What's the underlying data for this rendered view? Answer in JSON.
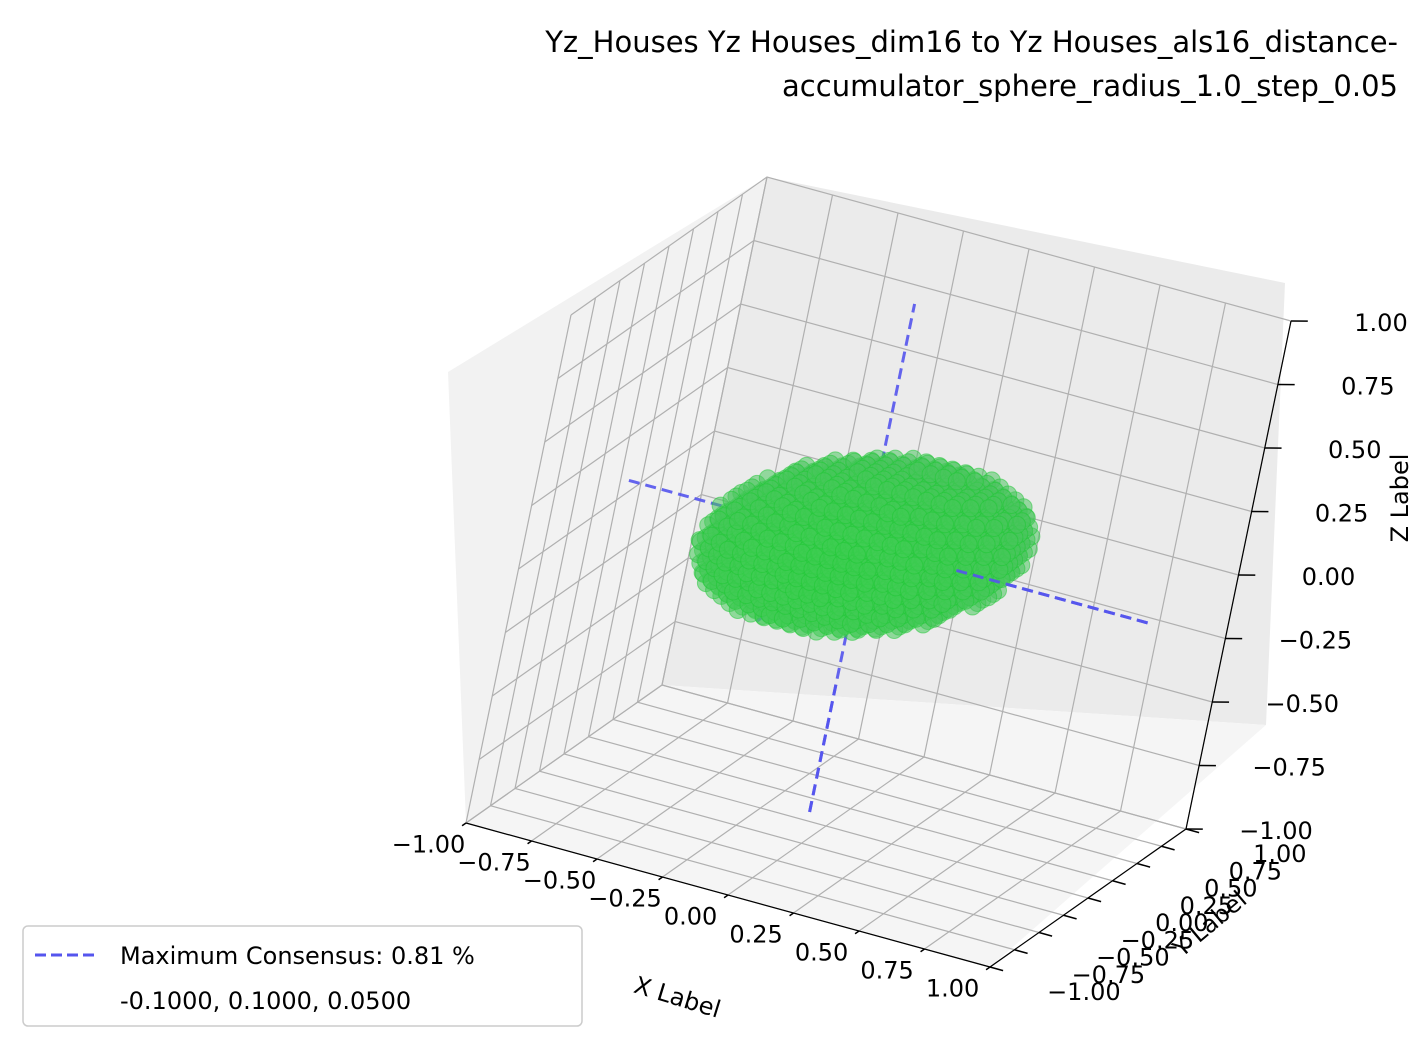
{
  "chart_data": {
    "type": "scatter",
    "title": "Yz_Houses Yz Houses_dim16 to Yz Houses_als16_distance-\naccumulator_sphere_radius_1.0_step_0.05",
    "title_lines": [
      "Yz_Houses Yz Houses_dim16 to Yz Houses_als16_distance-",
      "accumulator_sphere_radius_1.0_step_0.05"
    ],
    "xlabel": "X Label",
    "ylabel": "Y Label",
    "zlabel": "Z Label",
    "xlim": [
      -1.0,
      1.0
    ],
    "ylim": [
      -1.0,
      1.0
    ],
    "zlim": [
      -1.0,
      1.0
    ],
    "x_ticks": [
      "−1.00",
      "−0.75",
      "−0.50",
      "−0.25",
      "0.00",
      "0.25",
      "0.50",
      "0.75",
      "1.00"
    ],
    "y_ticks": [
      "−1.00",
      "−0.75",
      "−0.50",
      "−0.25",
      "0.00",
      "0.25",
      "0.50",
      "0.75",
      "1.00"
    ],
    "z_ticks": [
      "−1.00",
      "−0.75",
      "−0.50",
      "−0.25",
      "0.00",
      "0.25",
      "0.50",
      "0.75",
      "1.00"
    ],
    "grid": true,
    "point_color": "#22dd33",
    "consensus_line_color": "#5555ee",
    "point_cloud_description_values": {
      "center": [
        -0.1,
        0.1,
        0.05
      ],
      "extent_x": [
        -0.7,
        0.55
      ],
      "extent_y": [
        -0.55,
        0.55
      ],
      "extent_z": [
        -0.45,
        0.35
      ]
    },
    "consensus_point": [
      -0.1,
      0.1,
      0.05
    ],
    "legend": {
      "placement": "lower-left",
      "entries": [
        "Maximum Consensus: 0.81 %",
        "-0.1000, 0.1000, 0.0500"
      ]
    }
  }
}
